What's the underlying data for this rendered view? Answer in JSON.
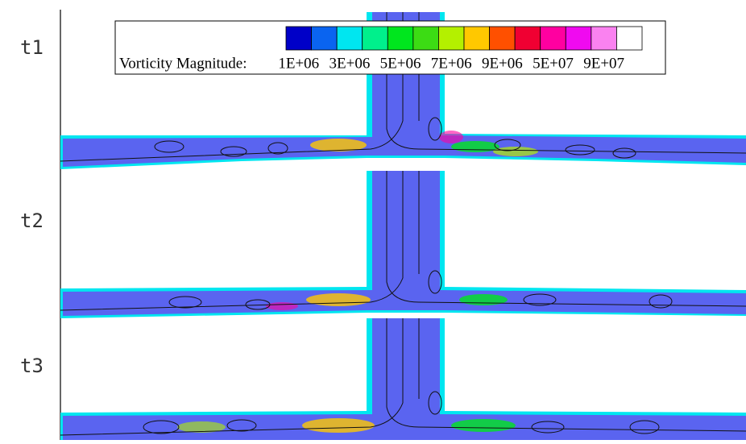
{
  "panels": [
    {
      "label": "t1"
    },
    {
      "label": "t2"
    },
    {
      "label": "t3"
    }
  ],
  "legend": {
    "title": "Vorticity Magnitude:",
    "colors": [
      "#0000c8",
      "#0a64f0",
      "#00e6f0",
      "#00f08c",
      "#00e61e",
      "#3cdc14",
      "#b4f000",
      "#ffc800",
      "#ff5000",
      "#f00032",
      "#ff00a0",
      "#f00af0",
      "#fa82f0",
      "#ffffff"
    ],
    "labels": [
      "1E+06",
      "3E+06",
      "5E+06",
      "7E+06",
      "9E+06",
      "5E+07",
      "9E+07"
    ]
  }
}
